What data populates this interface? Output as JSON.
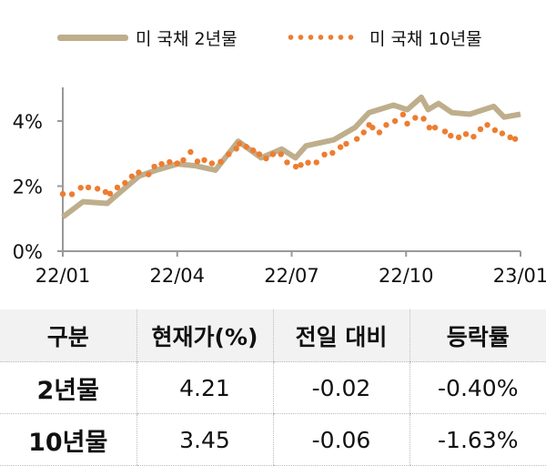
{
  "chart_data": {
    "type": "line",
    "title": "",
    "xlabel": "",
    "ylabel": "",
    "x_ticks": [
      "22/01",
      "22/04",
      "22/07",
      "22/10",
      "23/01"
    ],
    "x_tick_months": [
      0,
      3,
      6,
      9,
      12
    ],
    "y_ticks": [
      "0%",
      "2%",
      "4%"
    ],
    "y_tick_values": [
      0,
      2,
      4
    ],
    "ylim": [
      0,
      5
    ],
    "xlim_months": [
      0,
      12
    ],
    "legend_position": "top",
    "series": [
      {
        "name": "미 국채 2년물",
        "color": "#bfae8c",
        "style": "line",
        "x": [
          0,
          0.53,
          1.17,
          1.35,
          2.0,
          2.45,
          3.0,
          3.45,
          4.0,
          4.6,
          5.2,
          5.74,
          6.1,
          6.38,
          7.1,
          7.66,
          8.03,
          8.67,
          9.03,
          9.4,
          9.58,
          9.85,
          10.2,
          10.67,
          11.3,
          11.57,
          12
        ],
        "y": [
          1.05,
          1.52,
          1.47,
          1.66,
          2.31,
          2.49,
          2.68,
          2.63,
          2.49,
          3.38,
          2.87,
          3.14,
          2.87,
          3.24,
          3.42,
          3.8,
          4.26,
          4.49,
          4.35,
          4.73,
          4.35,
          4.54,
          4.26,
          4.21,
          4.45,
          4.12,
          4.21
        ]
      },
      {
        "name": "미 국채 10년물",
        "color": "#ed7d31",
        "style": "dots",
        "x": [
          0,
          0.24,
          0.47,
          0.67,
          0.91,
          1.12,
          1.24,
          1.43,
          1.63,
          1.81,
          1.99,
          2.25,
          2.4,
          2.59,
          2.8,
          3.0,
          3.16,
          3.35,
          3.53,
          3.71,
          3.91,
          4.14,
          4.35,
          4.55,
          4.63,
          4.81,
          4.99,
          5.15,
          5.33,
          5.51,
          5.72,
          5.88,
          6.11,
          6.24,
          6.43,
          6.65,
          6.86,
          7.07,
          7.28,
          7.43,
          7.71,
          7.89,
          8.03,
          8.12,
          8.3,
          8.48,
          8.71,
          8.92,
          9.03,
          9.24,
          9.46,
          9.61,
          9.76,
          10.02,
          10.17,
          10.38,
          10.57,
          10.77,
          10.95,
          11.13,
          11.33,
          11.52,
          11.73,
          11.86
        ],
        "y": [
          1.76,
          1.75,
          1.95,
          1.96,
          1.92,
          1.82,
          1.77,
          1.96,
          2.1,
          2.3,
          2.42,
          2.36,
          2.6,
          2.68,
          2.74,
          2.7,
          2.8,
          3.05,
          2.76,
          2.8,
          2.7,
          2.75,
          2.98,
          3.15,
          3.3,
          3.21,
          3.1,
          2.98,
          2.85,
          2.98,
          2.98,
          2.73,
          2.6,
          2.65,
          2.72,
          2.73,
          2.97,
          3.02,
          3.2,
          3.3,
          3.45,
          3.65,
          3.88,
          3.8,
          3.65,
          3.88,
          4.0,
          4.2,
          3.92,
          4.1,
          4.07,
          3.8,
          3.8,
          3.68,
          3.55,
          3.5,
          3.6,
          3.52,
          3.75,
          3.88,
          3.72,
          3.62,
          3.5,
          3.45
        ]
      }
    ]
  },
  "table": {
    "headers": [
      "구분",
      "현재가(%)",
      "전일 대비",
      "등락률"
    ],
    "rows": [
      [
        "2년물",
        "4.21",
        "-0.02",
        "-0.40%"
      ],
      [
        "10년물",
        "3.45",
        "-0.06",
        "-1.63%"
      ]
    ]
  }
}
